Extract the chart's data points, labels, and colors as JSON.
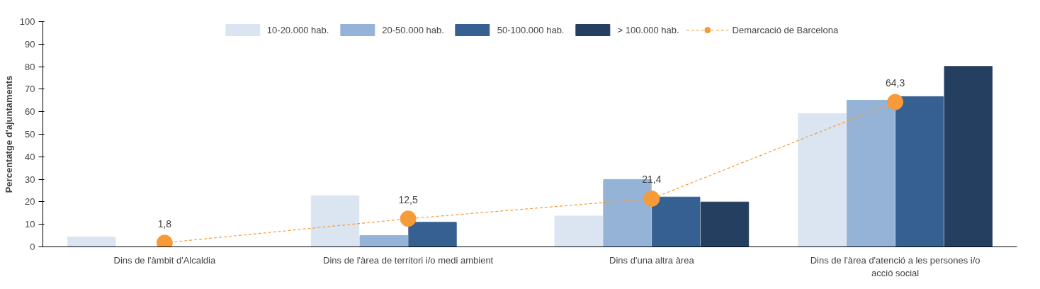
{
  "chart_data": {
    "type": "bar",
    "ylabel": "Percentatge d'ajuntaments",
    "categories": [
      "Dins de l'àmbit d'Alcaldia",
      "Dins de l'àrea de territori i/o medi ambient",
      "Dins d'una altra àrea",
      "Dins de l'àrea d'atenció a les persones i/o acció social"
    ],
    "series": [
      {
        "name": "10-20.000 hab.",
        "color": "#dbe5f1",
        "values": [
          4.4,
          22.7,
          13.7,
          59.2
        ]
      },
      {
        "name": "20-50.000 hab.",
        "color": "#95b3d7",
        "values": [
          0,
          5.0,
          29.9,
          65.1
        ]
      },
      {
        "name": "50-100.000 hab.",
        "color": "#366092",
        "values": [
          0,
          10.9,
          22.1,
          66.7
        ]
      },
      {
        "name": "> 100.000 hab.",
        "color": "#243f60",
        "values": [
          0,
          0,
          19.9,
          80.1
        ]
      },
      {
        "name": "Demarcació de Barcelona",
        "type": "line",
        "color": "#f79a38",
        "values": [
          1.8,
          12.5,
          21.4,
          64.3
        ],
        "marker": "circle",
        "line_style": "dashed",
        "value_labels": [
          "1,8",
          "12,5",
          "21,4",
          "64,3"
        ]
      }
    ],
    "ylim": [
      0,
      100
    ],
    "yticks": [
      0,
      10,
      20,
      30,
      40,
      50,
      60,
      70,
      80,
      90,
      100
    ],
    "legend": "top",
    "grid": false
  }
}
